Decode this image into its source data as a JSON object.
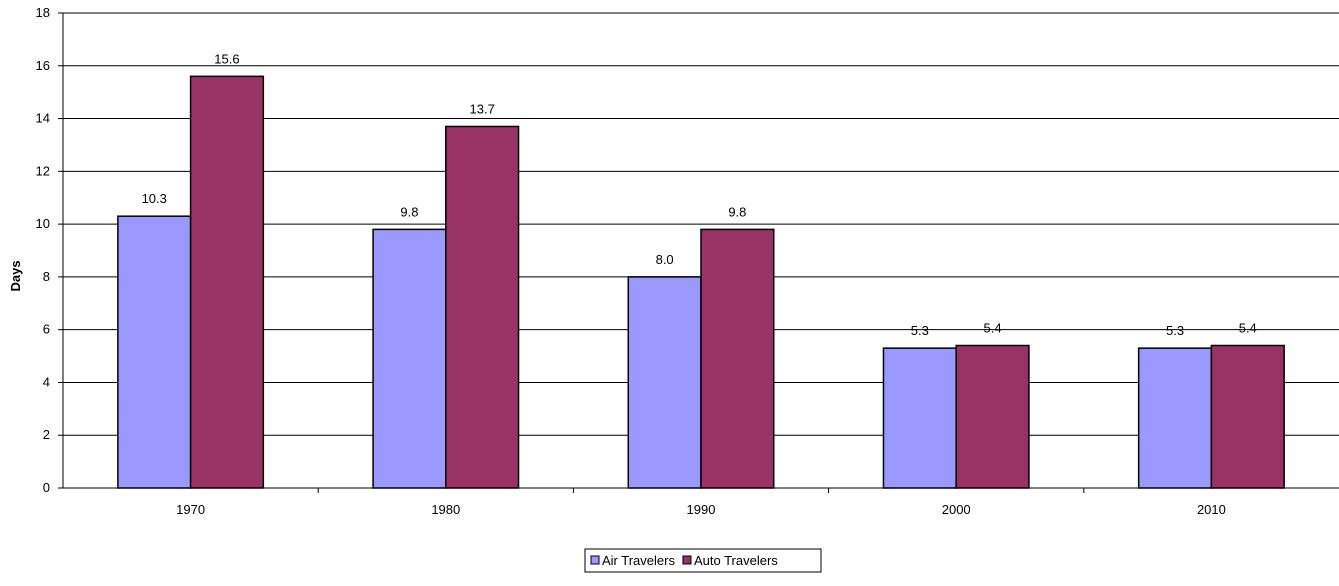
{
  "chart_data": {
    "type": "bar",
    "categories": [
      "1970",
      "1980",
      "1990",
      "2000",
      "2010"
    ],
    "series": [
      {
        "name": "Air Travelers",
        "values": [
          10.3,
          9.8,
          8.0,
          5.3,
          5.3
        ],
        "labels": [
          "10.3",
          "9.8",
          "8.0",
          "5.3",
          "5.3"
        ],
        "color": "#9999FF"
      },
      {
        "name": "Auto Travelers",
        "values": [
          15.6,
          13.7,
          9.8,
          5.4,
          5.4
        ],
        "labels": [
          "15.6",
          "13.7",
          "9.8",
          "5.4",
          "5.4"
        ],
        "color": "#993366"
      }
    ],
    "title": "",
    "xlabel": "",
    "ylabel": "Days",
    "ylim": [
      0,
      18
    ],
    "yticks": [
      "0",
      "2",
      "4",
      "6",
      "8",
      "10",
      "12",
      "14",
      "16",
      "18"
    ],
    "grid": true,
    "legend_position": "bottom"
  }
}
